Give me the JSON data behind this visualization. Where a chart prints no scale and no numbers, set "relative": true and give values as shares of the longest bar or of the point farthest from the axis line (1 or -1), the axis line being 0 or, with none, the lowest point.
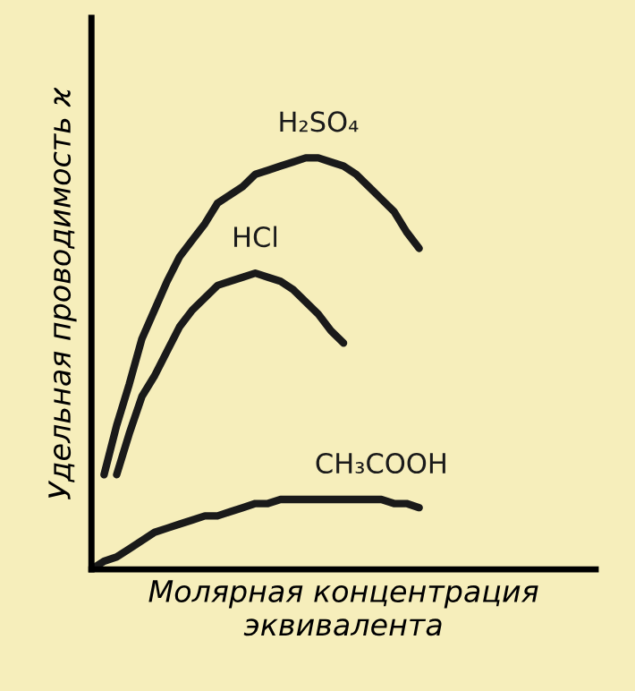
{
  "chart_data": {
    "type": "line",
    "relative": true,
    "xlabel": "Молярная концентрация\nэквивалента",
    "ylabel": "Удельная проводимость ϰ",
    "categories": [
      null,
      null,
      null,
      null,
      null,
      null,
      null,
      null,
      null,
      null,
      null,
      null,
      null,
      null,
      null,
      null,
      null,
      null,
      null,
      null,
      null,
      null,
      null,
      null,
      null,
      null,
      null,
      null,
      null,
      null,
      null,
      null,
      null,
      null,
      null,
      null,
      null,
      null,
      null,
      null,
      null
    ],
    "series": [
      {
        "name": "H₂SO₄",
        "color": "#1a1a1a",
        "values": [
          null,
          0.23,
          0.35,
          0.45,
          0.56,
          0.63,
          0.7,
          0.76,
          0.8,
          0.84,
          0.89,
          0.91,
          0.93,
          0.96,
          0.97,
          0.98,
          0.99,
          1.0,
          1.0,
          0.99,
          0.98,
          0.96,
          0.93,
          0.9,
          0.87,
          0.82,
          0.78,
          null,
          null,
          null,
          null,
          null,
          null,
          null,
          null,
          null,
          null,
          null,
          null,
          null,
          null
        ]
      },
      {
        "name": "HCl",
        "color": "#1a1a1a",
        "values": [
          null,
          null,
          0.23,
          0.33,
          0.42,
          0.47,
          0.53,
          0.59,
          0.63,
          0.66,
          0.69,
          0.7,
          0.71,
          0.72,
          0.71,
          0.7,
          0.68,
          0.65,
          0.62,
          0.58,
          0.55,
          null,
          null,
          null,
          null,
          null,
          null,
          null,
          null,
          null,
          null,
          null,
          null,
          null,
          null,
          null,
          null,
          null,
          null,
          null,
          null
        ]
      },
      {
        "name": "CH₃COOH",
        "color": "#1a1a1a",
        "values": [
          0,
          0.02,
          0.03,
          0.05,
          0.07,
          0.09,
          0.1,
          0.11,
          0.12,
          0.13,
          0.13,
          0.14,
          0.15,
          0.16,
          0.16,
          0.17,
          0.17,
          0.17,
          0.17,
          0.17,
          0.17,
          0.17,
          0.17,
          0.17,
          0.16,
          0.16,
          0.15,
          null,
          null,
          null,
          null,
          null,
          null,
          null,
          null,
          null,
          null,
          null,
          null,
          null,
          null
        ]
      }
    ],
    "line_style": "solid"
  }
}
